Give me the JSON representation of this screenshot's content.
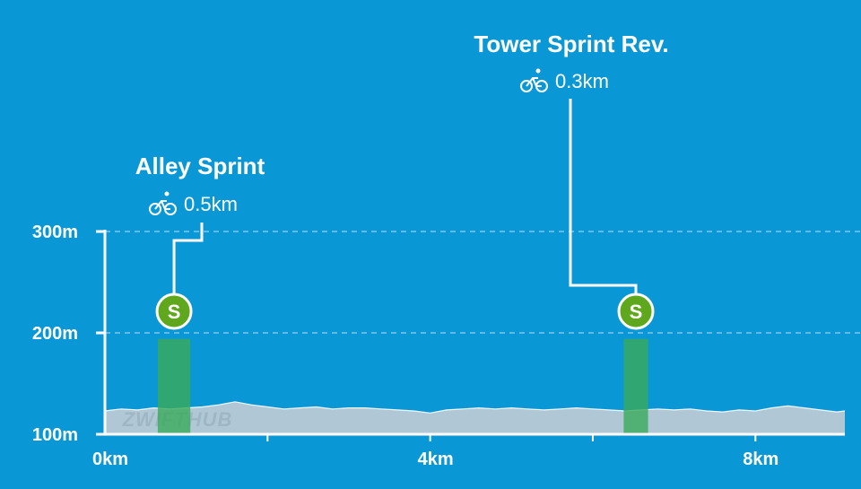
{
  "chart_data": {
    "type": "area",
    "title": "",
    "xlabel": "",
    "ylabel": "",
    "x_unit": "km",
    "y_unit": "m",
    "xlim": [
      0,
      9.1
    ],
    "ylim": [
      100,
      300
    ],
    "grid": {
      "horizontal_dashed": [
        200,
        300
      ]
    },
    "y_ticks": [
      {
        "value": 100,
        "label": "100m"
      },
      {
        "value": 200,
        "label": "200m"
      },
      {
        "value": 300,
        "label": "300m"
      }
    ],
    "x_ticks": [
      {
        "value": 0,
        "label": "0km"
      },
      {
        "value": 2,
        "label": ""
      },
      {
        "value": 4,
        "label": "4km"
      },
      {
        "value": 6,
        "label": ""
      },
      {
        "value": 8,
        "label": "8km"
      }
    ],
    "elevation_profile": {
      "x": [
        0,
        0.2,
        0.4,
        0.6,
        0.8,
        1.0,
        1.2,
        1.4,
        1.6,
        1.8,
        2.0,
        2.2,
        2.4,
        2.6,
        2.8,
        3.0,
        3.2,
        3.4,
        3.6,
        3.8,
        4.0,
        4.2,
        4.4,
        4.6,
        4.8,
        5.0,
        5.2,
        5.4,
        5.6,
        5.8,
        6.0,
        6.2,
        6.4,
        6.6,
        6.8,
        7.0,
        7.2,
        7.4,
        7.6,
        7.8,
        8.0,
        8.2,
        8.4,
        8.6,
        8.8,
        9.0,
        9.1
      ],
      "y": [
        123,
        125,
        124,
        126,
        125,
        126,
        127,
        129,
        132,
        129,
        127,
        125,
        126,
        127,
        125,
        126,
        126,
        125,
        124,
        123,
        121,
        124,
        125,
        126,
        125,
        126,
        125,
        124,
        125,
        126,
        125,
        124,
        123,
        124,
        125,
        124,
        125,
        123,
        122,
        124,
        123,
        126,
        128,
        126,
        124,
        122,
        123
      ]
    },
    "segments": [
      {
        "name": "Alley Sprint",
        "distance": "0.5km",
        "badge": "S",
        "start_km": 0.65,
        "end_km": 1.05,
        "top_m": 194
      },
      {
        "name": "Tower Sprint Rev.",
        "distance": "0.3km",
        "badge": "S",
        "start_km": 6.38,
        "end_km": 6.68,
        "top_m": 194
      }
    ],
    "watermark": "ZWIFTHUB",
    "colors": {
      "background": "#0a97d6",
      "profile_fill": "#b0c8d6",
      "sprint_band": "#3aaa5a",
      "badge": "#5fa81e",
      "axis": "#ffffff"
    }
  }
}
